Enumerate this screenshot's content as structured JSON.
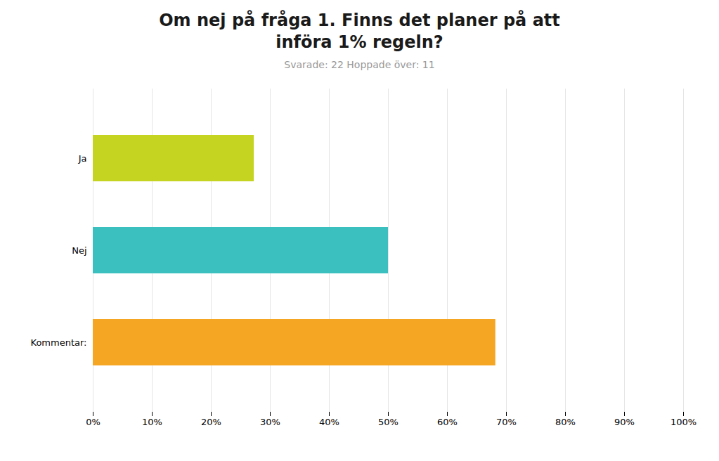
{
  "chart_data": {
    "type": "bar",
    "orientation": "horizontal",
    "title": "Om nej på fråga 1. Finns det planer på att\ninföra 1% regeln?",
    "subtitle": "Svarade: 22   Hoppade över: 11",
    "categories": [
      "Kommentar:",
      "Nej",
      "Ja"
    ],
    "values": [
      68.18,
      50.0,
      27.27
    ],
    "colors": [
      "#F5A623",
      "#3BBFBF",
      "#C5D420"
    ],
    "xlim": [
      0,
      100
    ],
    "xticks": [
      {
        "value": 0,
        "label": "0%"
      },
      {
        "value": 10,
        "label": "10%"
      },
      {
        "value": 20,
        "label": "20%"
      },
      {
        "value": 30,
        "label": "30%"
      },
      {
        "value": 40,
        "label": "40%"
      },
      {
        "value": 50,
        "label": "50%"
      },
      {
        "value": 60,
        "label": "60%"
      },
      {
        "value": 70,
        "label": "70%"
      },
      {
        "value": 80,
        "label": "80%"
      },
      {
        "value": 90,
        "label": "90%"
      },
      {
        "value": 100,
        "label": "100%"
      }
    ],
    "grid": true
  }
}
